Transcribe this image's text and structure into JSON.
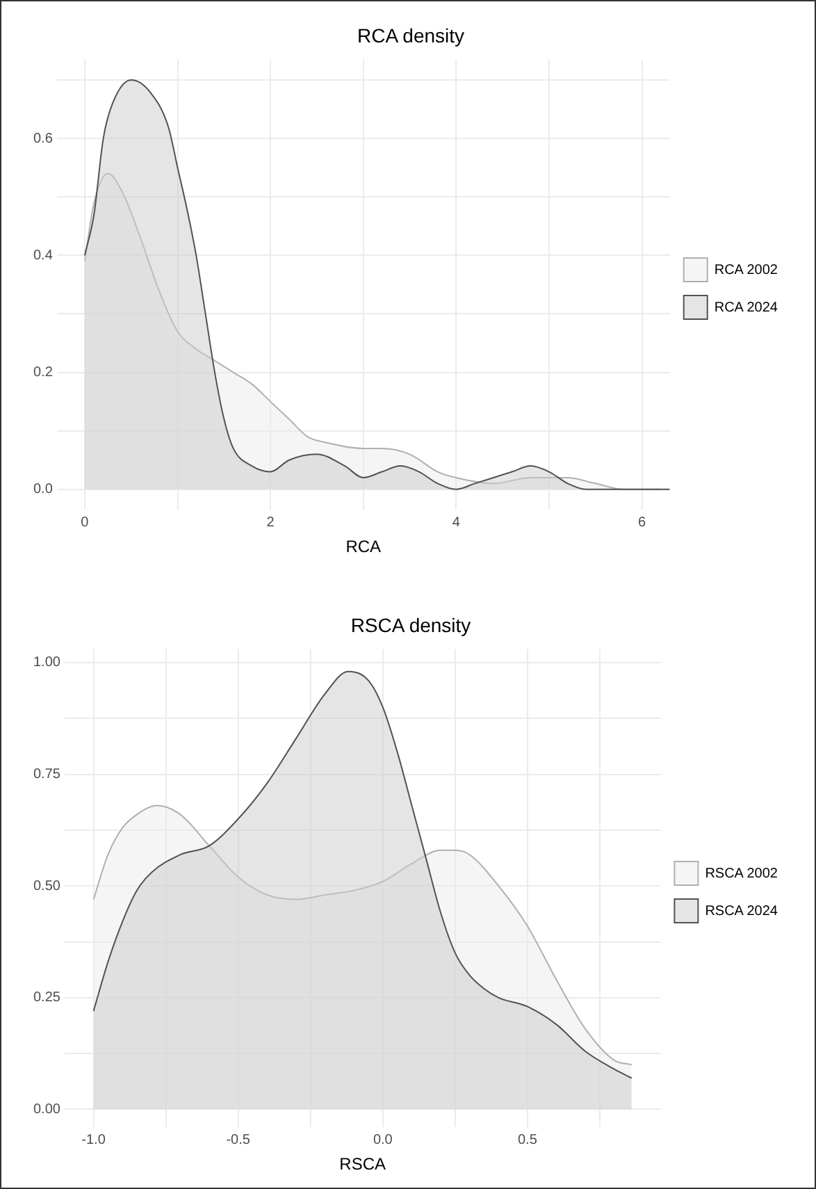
{
  "chart_data": [
    {
      "type": "area",
      "title": "RCA density",
      "xlabel": "RCA",
      "xlim": [
        -0.3,
        6.3
      ],
      "ylim": [
        -0.035,
        0.735
      ],
      "xticks": [
        0,
        {
          "value": 1,
          "label": null
        },
        2,
        {
          "value": 3,
          "label": null
        },
        4,
        {
          "value": 5,
          "label": null
        },
        6
      ],
      "yticks": [
        {
          "value": 0,
          "label": "0.0"
        },
        {
          "value": 0.1,
          "label": null
        },
        {
          "value": 0.2,
          "label": "0.2"
        },
        {
          "value": 0.3,
          "label": null
        },
        {
          "value": 0.4,
          "label": "0.4"
        },
        {
          "value": 0.5,
          "label": null
        },
        {
          "value": 0.6,
          "label": "0.6"
        },
        {
          "value": 0.7,
          "label": null
        }
      ],
      "grid": true,
      "legend": "right",
      "series": [
        {
          "name": "RCA 2002",
          "color": "#ebebeb",
          "x": [
            0,
            0.1,
            0.25,
            0.4,
            0.6,
            0.8,
            1.0,
            1.2,
            1.4,
            1.6,
            1.8,
            2.0,
            2.2,
            2.4,
            2.6,
            3.0,
            3.2,
            3.5,
            3.8,
            4.0,
            4.4,
            4.8,
            5.0,
            5.2,
            5.5,
            5.8,
            6.2
          ],
          "values": [
            0.39,
            0.49,
            0.54,
            0.51,
            0.43,
            0.34,
            0.27,
            0.24,
            0.22,
            0.2,
            0.18,
            0.15,
            0.12,
            0.09,
            0.08,
            0.07,
            0.07,
            0.06,
            0.03,
            0.02,
            0.01,
            0.02,
            0.02,
            0.02,
            0.01,
            0,
            0
          ]
        },
        {
          "name": "RCA 2024",
          "color": "#cccccc",
          "x": [
            0,
            0.1,
            0.2,
            0.3,
            0.5,
            0.7,
            0.9,
            1.0,
            1.1,
            1.2,
            1.3,
            1.4,
            1.5,
            1.6,
            1.8,
            2.0,
            2.2,
            2.5,
            2.8,
            3.0,
            3.2,
            3.4,
            3.6,
            3.8,
            4.0,
            4.2,
            4.4,
            4.6,
            4.8,
            5.0,
            5.2,
            5.4,
            6.0,
            6.3
          ],
          "values": [
            0.4,
            0.47,
            0.6,
            0.66,
            0.7,
            0.68,
            0.62,
            0.55,
            0.48,
            0.4,
            0.3,
            0.2,
            0.12,
            0.07,
            0.04,
            0.03,
            0.05,
            0.06,
            0.04,
            0.02,
            0.03,
            0.04,
            0.03,
            0.01,
            0,
            0.01,
            0.02,
            0.03,
            0.04,
            0.03,
            0.01,
            0,
            0,
            0
          ]
        }
      ]
    },
    {
      "type": "area",
      "title": "RSCA density",
      "xlabel": "RSCA",
      "xlim": [
        -1.1,
        0.96
      ],
      "ylim": [
        -0.04,
        1.03
      ],
      "xticks": [
        {
          "value": -1,
          "label": "-1.0"
        },
        {
          "value": -0.75,
          "label": null
        },
        {
          "value": -0.5,
          "label": "-0.5"
        },
        {
          "value": -0.25,
          "label": null
        },
        {
          "value": 0,
          "label": "0.0"
        },
        {
          "value": 0.25,
          "label": null
        },
        {
          "value": 0.5,
          "label": "0.5"
        },
        {
          "value": 0.75,
          "label": null
        }
      ],
      "yticks": [
        {
          "value": 0,
          "label": "0.00"
        },
        {
          "value": 0.125,
          "label": null
        },
        {
          "value": 0.25,
          "label": "0.25"
        },
        {
          "value": 0.375,
          "label": null
        },
        {
          "value": 0.5,
          "label": "0.50"
        },
        {
          "value": 0.625,
          "label": null
        },
        {
          "value": 0.75,
          "label": "0.75"
        },
        {
          "value": 0.875,
          "label": null
        },
        {
          "value": 1,
          "label": "1.00"
        }
      ],
      "grid": true,
      "legend": "right",
      "series": [
        {
          "name": "RSCA 2002",
          "color": "#ebebeb",
          "x": [
            -1.0,
            -0.95,
            -0.9,
            -0.85,
            -0.78,
            -0.7,
            -0.6,
            -0.5,
            -0.4,
            -0.3,
            -0.2,
            -0.1,
            0.0,
            0.1,
            0.2,
            0.25,
            0.3,
            0.4,
            0.5,
            0.6,
            0.7,
            0.8,
            0.86
          ],
          "values": [
            0.47,
            0.57,
            0.63,
            0.66,
            0.68,
            0.66,
            0.59,
            0.52,
            0.48,
            0.47,
            0.48,
            0.49,
            0.51,
            0.55,
            0.58,
            0.58,
            0.57,
            0.5,
            0.41,
            0.29,
            0.18,
            0.11,
            0.1
          ]
        },
        {
          "name": "RSCA 2024",
          "color": "#cccccc",
          "x": [
            -1.0,
            -0.95,
            -0.9,
            -0.85,
            -0.8,
            -0.7,
            -0.6,
            -0.5,
            -0.4,
            -0.3,
            -0.2,
            -0.12,
            -0.05,
            0.0,
            0.05,
            0.1,
            0.15,
            0.2,
            0.25,
            0.3,
            0.35,
            0.4,
            0.5,
            0.6,
            0.7,
            0.8,
            0.86
          ],
          "values": [
            0.22,
            0.33,
            0.42,
            0.49,
            0.53,
            0.57,
            0.59,
            0.65,
            0.73,
            0.83,
            0.93,
            0.98,
            0.96,
            0.9,
            0.8,
            0.68,
            0.56,
            0.44,
            0.35,
            0.3,
            0.27,
            0.25,
            0.23,
            0.19,
            0.13,
            0.09,
            0.07
          ]
        }
      ]
    }
  ]
}
